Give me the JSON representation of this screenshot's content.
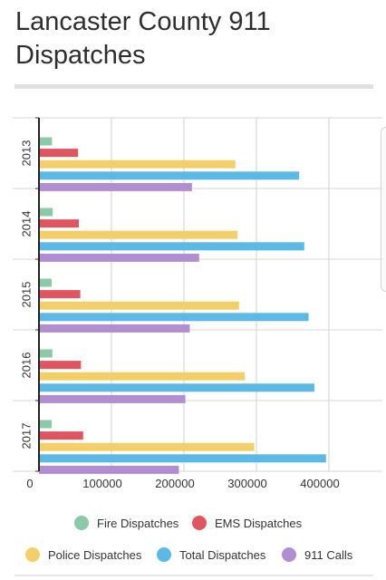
{
  "page": {
    "title": "Lancaster County 911 Dispatches"
  },
  "chart_data": {
    "type": "bar",
    "orientation": "horizontal",
    "title": "Lancaster County 911 Dispatches",
    "categories": [
      "2013",
      "2014",
      "2015",
      "2016",
      "2017"
    ],
    "series": [
      {
        "name": "Fire Dispatches",
        "color": "#8cc9a6",
        "values": [
          18000,
          19000,
          17500,
          18500,
          17500
        ]
      },
      {
        "name": "EMS Dispatches",
        "color": "#e05660",
        "values": [
          54000,
          55000,
          57000,
          58000,
          61000
        ]
      },
      {
        "name": "Police Dispatches",
        "color": "#f2cf6a",
        "values": [
          271000,
          274000,
          276000,
          284000,
          297000
        ]
      },
      {
        "name": "Total Dispatches",
        "color": "#5cb8e5",
        "values": [
          359000,
          366000,
          372000,
          380000,
          396000
        ]
      },
      {
        "name": "911 Calls",
        "color": "#b08ed0",
        "values": [
          211000,
          221000,
          208000,
          202000,
          193000
        ]
      }
    ],
    "xlim": [
      0,
      400000
    ],
    "xticks": [
      0,
      100000,
      200000,
      300000,
      400000
    ],
    "xtick_labels": [
      "0",
      "100000",
      "200000",
      "300000",
      "400000"
    ],
    "grid": true,
    "legend_placement": "bottom"
  }
}
